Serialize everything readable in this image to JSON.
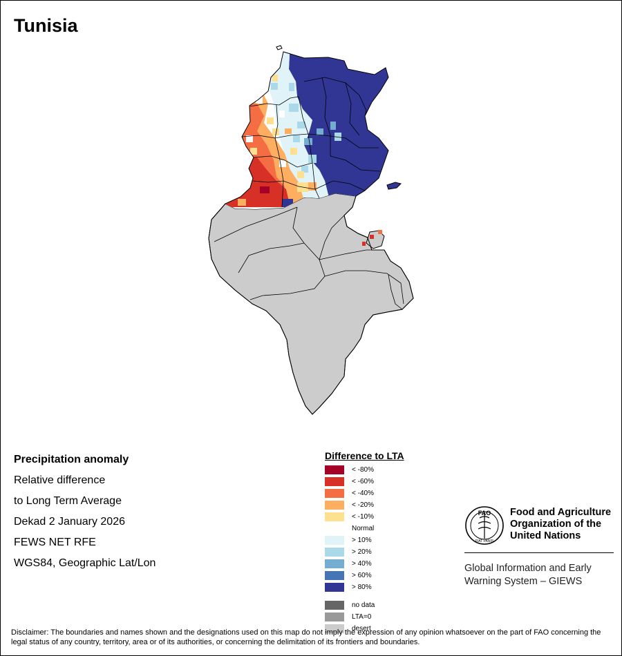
{
  "title": "Tunisia",
  "info": {
    "heading": "Precipitation anomaly",
    "line1": "Relative difference",
    "line2": "to Long Term Average",
    "period": "Dekad 2 January 2026",
    "source": "FEWS NET RFE",
    "projection": "WGS84, Geographic Lat/Lon"
  },
  "legend": {
    "title": "Difference to LTA",
    "classes": [
      {
        "label": "< -80%",
        "color": "#a50026"
      },
      {
        "label": "< -60%",
        "color": "#d73027"
      },
      {
        "label": "< -40%",
        "color": "#f46d43"
      },
      {
        "label": "< -20%",
        "color": "#fdae61"
      },
      {
        "label": "< -10%",
        "color": "#fee090"
      },
      {
        "label": "Normal",
        "color": "#ffffff"
      },
      {
        "label": "> 10%",
        "color": "#e0f3f8"
      },
      {
        "label": "> 20%",
        "color": "#abd9e9"
      },
      {
        "label": "> 40%",
        "color": "#74add1"
      },
      {
        "label": "> 60%",
        "color": "#4575b4"
      },
      {
        "label": "> 80%",
        "color": "#313695"
      }
    ],
    "special": [
      {
        "label": "no data",
        "color": "#666666"
      },
      {
        "label": "LTA=0",
        "color": "#999999"
      },
      {
        "label": "desert",
        "color": "#cccccc"
      }
    ]
  },
  "org": {
    "name_line1": "Food and Agriculture",
    "name_line2": "Organization of the",
    "name_line3": "United Nations",
    "giews_line1": "Global Information and Early",
    "giews_line2": "Warning System – GIEWS",
    "logo_text": "FAO",
    "logo_motto": "FIAT PANIS"
  },
  "disclaimer": "Disclaimer: The boundaries and names shown and the designations used on this map do not imply the expression of any opinion whatsoever on the part of FAO concerning the legal status of any country, territory, area or of its authorities, or concerning the delimitation of its frontiers and boundaries."
}
